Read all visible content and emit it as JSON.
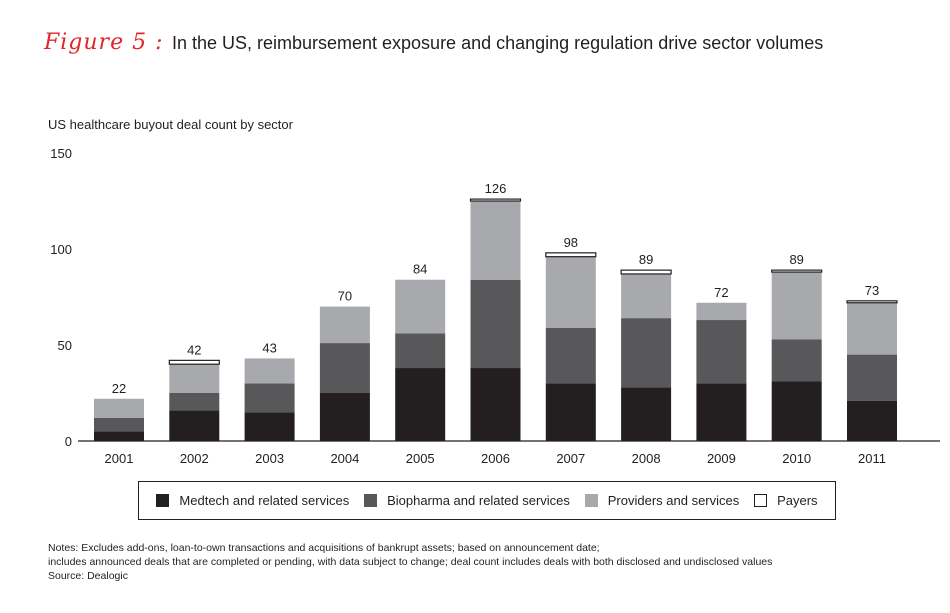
{
  "header": {
    "figure_label": "Figure 5 :",
    "title": "In the US, reimbursement exposure and changing regulation drive sector volumes"
  },
  "chart_data": {
    "type": "bar",
    "stacked": true,
    "title": "US healthcare buyout deal count by sector",
    "ylim": [
      0,
      150
    ],
    "yticks": [
      "0",
      "50",
      "100",
      "150"
    ],
    "categories": [
      "2001",
      "2002",
      "2003",
      "2004",
      "2005",
      "2006",
      "2007",
      "2008",
      "2009",
      "2010",
      "2011"
    ],
    "totals": [
      "22",
      "42",
      "43",
      "70",
      "84",
      "126",
      "98",
      "89",
      "72",
      "89",
      "73"
    ],
    "series": [
      {
        "name": "Medtech and related services",
        "color": "#231f20",
        "values": [
          5,
          16,
          15,
          25,
          38,
          38,
          30,
          28,
          30,
          31,
          21
        ]
      },
      {
        "name": "Biopharma and related services",
        "color": "#58585a",
        "values": [
          7,
          9,
          15,
          26,
          18,
          46,
          29,
          36,
          33,
          22,
          24
        ]
      },
      {
        "name": "Providers and services",
        "color": "#a7a9ac",
        "values": [
          10,
          15,
          13,
          19,
          28,
          41,
          37,
          23,
          9,
          35,
          27
        ]
      },
      {
        "name": "Payers",
        "color": "#ffffff",
        "values": [
          0,
          2,
          0,
          0,
          0,
          1,
          2,
          2,
          0,
          1,
          1
        ]
      }
    ],
    "grid": false,
    "legend_position": "bottom"
  },
  "notes": {
    "line1": "Notes: Excludes add-ons, loan-to-own transactions and acquisitions of bankrupt assets; based on announcement date;",
    "line2": "includes announced deals that are completed or pending, with data subject to change; deal count includes deals with both disclosed and undisclosed values",
    "source": "Source: Dealogic"
  }
}
